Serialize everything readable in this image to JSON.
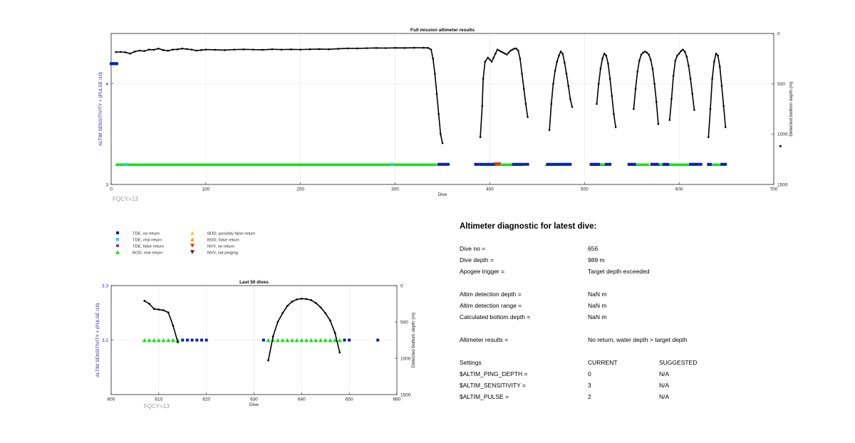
{
  "colors": {
    "tde_no_return": "#0a1fb4",
    "tde_real_return": "#2ad5e8",
    "tde_false_return": "#7b3fb8",
    "bod_real_return": "#16e016",
    "bod_possibly_false": "#f5d21c",
    "bod_false_return": "#f59e1c",
    "nvv_no_return": "#e0301c",
    "nvv_not_pinging": "#7a1206",
    "left_axis": "#1e1eb4",
    "depth_line": "#000000",
    "grid": "#e6e6e6"
  },
  "chart_data": [
    {
      "id": "full-mission",
      "type": "scatter",
      "title": "Full mission altimeter results",
      "xlabel": "Dive",
      "ylabel_left": "ALTIM SENSITIVITY + (PULSE /10)",
      "ylabel_right": "Detected bottom depth (m)",
      "xlim": [
        0,
        700
      ],
      "xticks": [
        0,
        100,
        200,
        300,
        400,
        500,
        600,
        700
      ],
      "ylim_left": [
        3,
        4.5
      ],
      "yticks_left": [
        3,
        4
      ],
      "ylim_right": [
        1500,
        0
      ],
      "yticks_right": [
        0,
        500,
        1000,
        1500
      ],
      "grid": true,
      "annotation": "FQCY=13",
      "tde_no_return_x": [
        0,
        1,
        2,
        3,
        4,
        5,
        6,
        346,
        348,
        350,
        352,
        354,
        356,
        385,
        387,
        390,
        393,
        396,
        399,
        402,
        405,
        425,
        428,
        431,
        434,
        437,
        440,
        461,
        463,
        466,
        469,
        472,
        475,
        477,
        479,
        481,
        483,
        485,
        507,
        509,
        511,
        513,
        515,
        523,
        525,
        527,
        547,
        549,
        551,
        553,
        571,
        573,
        575,
        577,
        584,
        586,
        588,
        612,
        614,
        616,
        618,
        620,
        623,
        631,
        633,
        645,
        647,
        649
      ],
      "tde_no_return_y": [
        4.2,
        4.2,
        4.2,
        4.2,
        4.2,
        4.2,
        4.2,
        3.2,
        3.2,
        3.2,
        3.2,
        3.2,
        3.2,
        3.2,
        3.2,
        3.2,
        3.2,
        3.2,
        3.2,
        3.2,
        3.2,
        3.2,
        3.2,
        3.2,
        3.2,
        3.2,
        3.2,
        3.2,
        3.2,
        3.2,
        3.2,
        3.2,
        3.2,
        3.2,
        3.2,
        3.2,
        3.2,
        3.2,
        3.2,
        3.2,
        3.2,
        3.2,
        3.2,
        3.2,
        3.2,
        3.2,
        3.2,
        3.2,
        3.2,
        3.2,
        3.2,
        3.2,
        3.2,
        3.2,
        3.2,
        3.2,
        3.2,
        3.2,
        3.2,
        3.2,
        3.2,
        3.2,
        3.2,
        3.2,
        3.2,
        3.2,
        3.2,
        3.2
      ],
      "tde_real_return_x": [
        16,
        297
      ],
      "tde_real_return_y": [
        3.2,
        3.2
      ],
      "bod_real_return": [
        [
          6,
          15
        ],
        [
          18,
          296
        ],
        [
          298,
          344
        ],
        [
          392,
          434
        ],
        [
          460,
          476
        ],
        [
          508,
          523
        ],
        [
          548,
          568
        ],
        [
          579,
          611
        ],
        [
          631,
          643
        ]
      ],
      "bod_real_return_y": 3.2,
      "nvv_no_return_x": [
        406,
        408,
        410
      ],
      "nvv_no_return_y": [
        3.2,
        3.2,
        3.2
      ],
      "lone_depth_point": [
        707,
        1120
      ],
      "depth_series": [
        [
          [
            5,
            185
          ],
          [
            10,
            183
          ],
          [
            15,
            187
          ],
          [
            20,
            200
          ],
          [
            25,
            180
          ],
          [
            30,
            170
          ],
          [
            35,
            175
          ],
          [
            40,
            160
          ],
          [
            45,
            162
          ],
          [
            50,
            150
          ],
          [
            55,
            165
          ],
          [
            60,
            172
          ],
          [
            65,
            160
          ],
          [
            70,
            158
          ],
          [
            75,
            150
          ],
          [
            80,
            155
          ],
          [
            85,
            160
          ],
          [
            90,
            170
          ],
          [
            95,
            165
          ],
          [
            100,
            160
          ],
          [
            110,
            162
          ],
          [
            120,
            165
          ],
          [
            130,
            160
          ],
          [
            140,
            158
          ],
          [
            150,
            160
          ],
          [
            160,
            162
          ],
          [
            170,
            157
          ],
          [
            180,
            160
          ],
          [
            190,
            158
          ],
          [
            200,
            160
          ],
          [
            210,
            157
          ],
          [
            220,
            155
          ],
          [
            230,
            157
          ],
          [
            240,
            152
          ],
          [
            250,
            148
          ],
          [
            260,
            148
          ],
          [
            270,
            146
          ],
          [
            280,
            144
          ],
          [
            290,
            145
          ],
          [
            300,
            143
          ],
          [
            310,
            144
          ],
          [
            320,
            142
          ],
          [
            330,
            142
          ],
          [
            335,
            144
          ],
          [
            338,
            160
          ],
          [
            340,
            250
          ],
          [
            342,
            400
          ],
          [
            344,
            600
          ],
          [
            346,
            800
          ],
          [
            348,
            1000
          ],
          [
            350,
            1090
          ]
        ],
        [
          [
            390,
            1030
          ],
          [
            392,
            720
          ],
          [
            393,
            450
          ],
          [
            395,
            280
          ],
          [
            398,
            240
          ],
          [
            400,
            260
          ],
          [
            402,
            280
          ],
          [
            404,
            240
          ],
          [
            406,
            200
          ],
          [
            408,
            160
          ],
          [
            410,
            170
          ],
          [
            412,
            180
          ],
          [
            414,
            190
          ],
          [
            416,
            200
          ],
          [
            418,
            210
          ],
          [
            420,
            190
          ],
          [
            422,
            170
          ],
          [
            424,
            160
          ],
          [
            426,
            150
          ],
          [
            428,
            150
          ],
          [
            430,
            170
          ],
          [
            432,
            250
          ],
          [
            434,
            400
          ],
          [
            436,
            550
          ],
          [
            438,
            700
          ],
          [
            440,
            830
          ]
        ],
        [
          [
            463,
            960
          ],
          [
            465,
            700
          ],
          [
            467,
            500
          ],
          [
            469,
            370
          ],
          [
            471,
            280
          ],
          [
            473,
            220
          ],
          [
            475,
            180
          ],
          [
            477,
            200
          ],
          [
            479,
            290
          ],
          [
            481,
            400
          ],
          [
            483,
            520
          ],
          [
            485,
            650
          ],
          [
            487,
            730
          ]
        ],
        [
          [
            513,
            700
          ],
          [
            515,
            500
          ],
          [
            517,
            350
          ],
          [
            519,
            250
          ],
          [
            521,
            200
          ],
          [
            523,
            220
          ],
          [
            525,
            300
          ],
          [
            527,
            450
          ],
          [
            529,
            620
          ],
          [
            531,
            800
          ],
          [
            533,
            930
          ]
        ],
        [
          [
            552,
            750
          ],
          [
            554,
            550
          ],
          [
            556,
            380
          ],
          [
            558,
            270
          ],
          [
            560,
            210
          ],
          [
            562,
            190
          ],
          [
            564,
            180
          ],
          [
            566,
            190
          ],
          [
            568,
            210
          ],
          [
            570,
            260
          ],
          [
            572,
            350
          ],
          [
            574,
            500
          ],
          [
            576,
            680
          ],
          [
            578,
            900
          ]
        ],
        [
          [
            590,
            860
          ],
          [
            592,
            650
          ],
          [
            594,
            420
          ],
          [
            596,
            270
          ],
          [
            598,
            220
          ],
          [
            600,
            200
          ],
          [
            602,
            175
          ],
          [
            604,
            160
          ],
          [
            606,
            180
          ],
          [
            608,
            230
          ],
          [
            610,
            320
          ],
          [
            612,
            450
          ],
          [
            614,
            600
          ],
          [
            616,
            760
          ]
        ],
        [
          [
            631,
            1030
          ],
          [
            633,
            750
          ],
          [
            635,
            450
          ],
          [
            637,
            280
          ],
          [
            639,
            200
          ],
          [
            641,
            220
          ],
          [
            643,
            330
          ],
          [
            645,
            520
          ],
          [
            647,
            720
          ],
          [
            649,
            930
          ]
        ]
      ]
    },
    {
      "id": "last-50",
      "type": "scatter",
      "title": "Last 50 dives",
      "xlabel": "Dive",
      "ylabel_left": "ALTIM SENSITIVITY + (PULSE /10)",
      "ylabel_right": "Detected bottom depth (m)",
      "xlim": [
        600,
        660
      ],
      "xticks": [
        600,
        610,
        620,
        630,
        640,
        650,
        660
      ],
      "ylim_left": [
        3.1,
        3.3
      ],
      "yticks_left": [
        3.2,
        3.3
      ],
      "ylim_right": [
        1500,
        0
      ],
      "yticks_right": [
        0,
        500,
        1000,
        1500
      ],
      "grid": true,
      "annotation": "FQCY=13",
      "tde_no_return_x": [
        615,
        616,
        617,
        618,
        619,
        620,
        632,
        649,
        650,
        656
      ],
      "tde_no_return_y": [
        3.2,
        3.2,
        3.2,
        3.2,
        3.2,
        3.2,
        3.2,
        3.2,
        3.2,
        3.2
      ],
      "bod_real_return_x": [
        607,
        608,
        609,
        610,
        611,
        612,
        613,
        614,
        633,
        634,
        635,
        636,
        637,
        638,
        639,
        640,
        641,
        642,
        643,
        644,
        645,
        646,
        647,
        648
      ],
      "bod_real_return_y": [
        3.2,
        3.2,
        3.2,
        3.2,
        3.2,
        3.2,
        3.2,
        3.2,
        3.2,
        3.2,
        3.2,
        3.2,
        3.2,
        3.2,
        3.2,
        3.2,
        3.2,
        3.2,
        3.2,
        3.2,
        3.2,
        3.2,
        3.2,
        3.2
      ],
      "depth_series": [
        [
          [
            607,
            210
          ],
          [
            608,
            250
          ],
          [
            609,
            320
          ],
          [
            610,
            330
          ],
          [
            611,
            340
          ],
          [
            612,
            370
          ],
          [
            613,
            550
          ],
          [
            614,
            780
          ]
        ],
        [
          [
            633,
            1030
          ],
          [
            634,
            700
          ],
          [
            635,
            500
          ],
          [
            636,
            380
          ],
          [
            637,
            280
          ],
          [
            638,
            220
          ],
          [
            639,
            190
          ],
          [
            640,
            180
          ],
          [
            641,
            185
          ],
          [
            642,
            200
          ],
          [
            643,
            240
          ],
          [
            644,
            300
          ],
          [
            645,
            380
          ],
          [
            646,
            480
          ],
          [
            647,
            650
          ],
          [
            648,
            920
          ]
        ]
      ]
    }
  ],
  "legend": {
    "items": [
      {
        "label": "TDE, no return",
        "color": "#0a1fb4",
        "marker": "square"
      },
      {
        "label": "TDE, real return",
        "color": "#2ad5e8",
        "marker": "square"
      },
      {
        "label": "TDE, false return",
        "color": "#7b3fb8",
        "marker": "square"
      },
      {
        "label": "BOD, real return",
        "color": "#16e016",
        "marker": "triangle-up"
      },
      {
        "label": "BOD, possibly false return",
        "color": "#f5d21c",
        "marker": "triangle-up"
      },
      {
        "label": "BOD, false return",
        "color": "#f59e1c",
        "marker": "triangle-up"
      },
      {
        "label": "NVV, no return",
        "color": "#e0301c",
        "marker": "triangle-down"
      },
      {
        "label": "NVV, not pinging",
        "color": "#7a1206",
        "marker": "triangle-down"
      }
    ]
  },
  "diagnostic": {
    "title": "Altimeter diagnostic for latest dive:",
    "dive_no_label": "Dive no =",
    "dive_no_value": "656",
    "dive_depth_label": "Dive depth =",
    "dive_depth_value": "989 m",
    "apogee_label": "Apogee trigger =",
    "apogee_value": "Target depth exceeded",
    "det_depth_label": "Altim detection depth =",
    "det_depth_value": "NaN m",
    "det_range_label": "Altim detection range =",
    "det_range_value": "NaN m",
    "calc_bottom_label": "Calculated bottom depth =",
    "calc_bottom_value": "NaN m",
    "results_label": "Altimeter results =",
    "results_value": "No return, water depth > target depth",
    "settings_label": "Settings",
    "current_header": "CURRENT",
    "suggested_header": "SUGGESTED",
    "ping_depth_label": "$ALTIM_PING_DEPTH =",
    "ping_depth_current": "0",
    "ping_depth_suggested": "N/A",
    "sensitivity_label": "$ALTIM_SENSITIVITY =",
    "sensitivity_current": "3",
    "sensitivity_suggested": "N/A",
    "pulse_label": "$ALTIM_PULSE =",
    "pulse_current": "2",
    "pulse_suggested": "N/A"
  }
}
